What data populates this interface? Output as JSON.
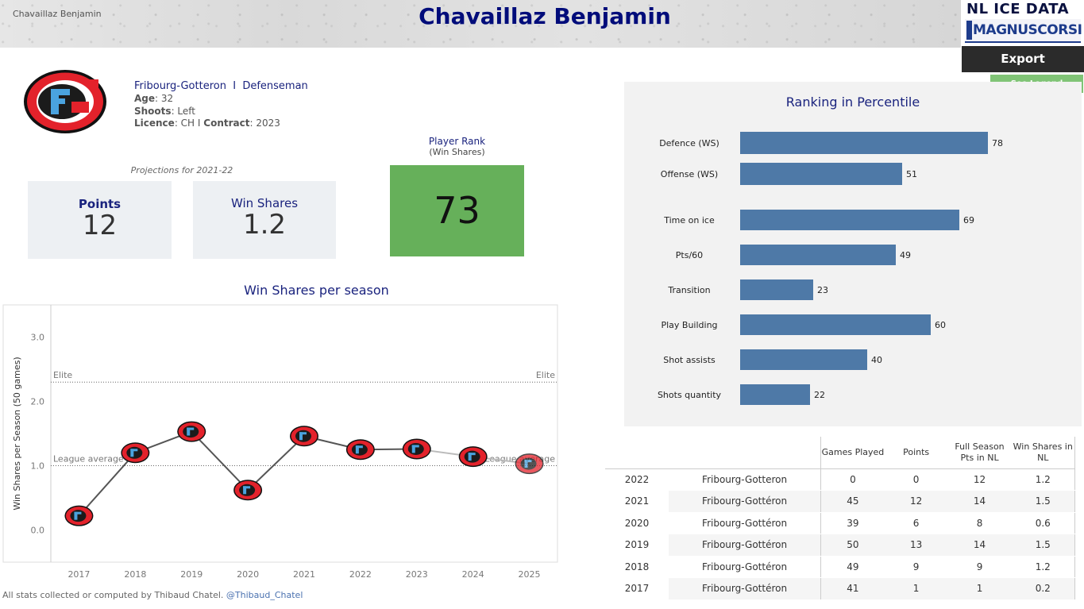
{
  "header": {
    "breadcrumb": "Chavaillaz Benjamin",
    "title": "Chavaillaz Benjamin",
    "brand_line1": "NL ICE DATA",
    "brand_line2": "MAGNUSCORSI",
    "export_label": "Export",
    "legend_label": "See Legend"
  },
  "player": {
    "team": "Fribourg-Gotteron",
    "separator": "I",
    "position": "Defenseman",
    "age_label": "Age",
    "age": "32",
    "shoots_label": "Shoots",
    "shoots": "Left",
    "licence_label": "Licence",
    "licence": "CH",
    "contract_label": "Contract",
    "contract": "2023"
  },
  "projections": {
    "title": "Projections for 2021-22",
    "points_label": "Points",
    "points_value": "12",
    "ws_label": "Win Shares",
    "ws_value": "1.2"
  },
  "rank": {
    "label": "Player Rank",
    "sublabel": "(Win Shares)",
    "value": "73",
    "color": "#66b05a"
  },
  "colors": {
    "accent": "#1a237e",
    "bar": "#4e79a7",
    "logo_red": "#e3222b",
    "logo_blue": "#4aa3df"
  },
  "footer": {
    "text": "All stats collected or computed by Thibaud Chatel.",
    "handle": "@Thibaud_Chatel"
  },
  "chart_data": [
    {
      "type": "line",
      "title": "Win Shares per season",
      "xlabel": "",
      "ylabel": "Win Shares per Season (50 games)",
      "x": [
        2017,
        2018,
        2019,
        2020,
        2021,
        2022,
        2023,
        2024,
        2025
      ],
      "x_tick_labels": [
        "2017",
        "2018",
        "2019",
        "2020",
        "2021",
        "2022",
        "2023",
        "2024",
        "2025"
      ],
      "series": [
        {
          "name": "Win Shares",
          "values": [
            0.22,
            1.2,
            1.53,
            0.62,
            1.46,
            1.25,
            1.26,
            1.14,
            1.03
          ]
        }
      ],
      "y_ticks": [
        0.0,
        1.0,
        2.0,
        3.0
      ],
      "y_tick_labels": [
        "0.0",
        "1.0",
        "2.0",
        "3.0"
      ],
      "ylim": [
        -0.5,
        3.5
      ],
      "reference_lines": [
        {
          "name": "Elite",
          "value": 2.3,
          "label_left": "Elite",
          "label_right": "Elite"
        },
        {
          "name": "League average",
          "value": 1.0,
          "label_left": "League average",
          "label_right": "League average"
        }
      ]
    },
    {
      "type": "bar",
      "orientation": "horizontal",
      "title": "Ranking in Percentile",
      "categories": [
        "Defence (WS)",
        "Offense (WS)",
        "Time on ice",
        "Pts/60",
        "Transition",
        "Play Building",
        "Shot assists",
        "Shots quantity"
      ],
      "values": [
        78,
        51,
        69,
        49,
        23,
        60,
        40,
        22
      ],
      "xlim": [
        0,
        100
      ]
    },
    {
      "type": "table",
      "columns": [
        "",
        "",
        "Games Played",
        "Points",
        "Full Season Pts in NL",
        "Win Shares in NL"
      ],
      "rows": [
        [
          "2022",
          "Fribourg-Gotteron",
          "0",
          "0",
          "12",
          "1.2"
        ],
        [
          "2021",
          "Fribourg-Gottéron",
          "45",
          "12",
          "14",
          "1.5"
        ],
        [
          "2020",
          "Fribourg-Gottéron",
          "39",
          "6",
          "8",
          "0.6"
        ],
        [
          "2019",
          "Fribourg-Gottéron",
          "50",
          "13",
          "14",
          "1.5"
        ],
        [
          "2018",
          "Fribourg-Gottéron",
          "49",
          "9",
          "9",
          "1.2"
        ],
        [
          "2017",
          "Fribourg-Gottéron",
          "41",
          "1",
          "1",
          "0.2"
        ]
      ]
    }
  ]
}
